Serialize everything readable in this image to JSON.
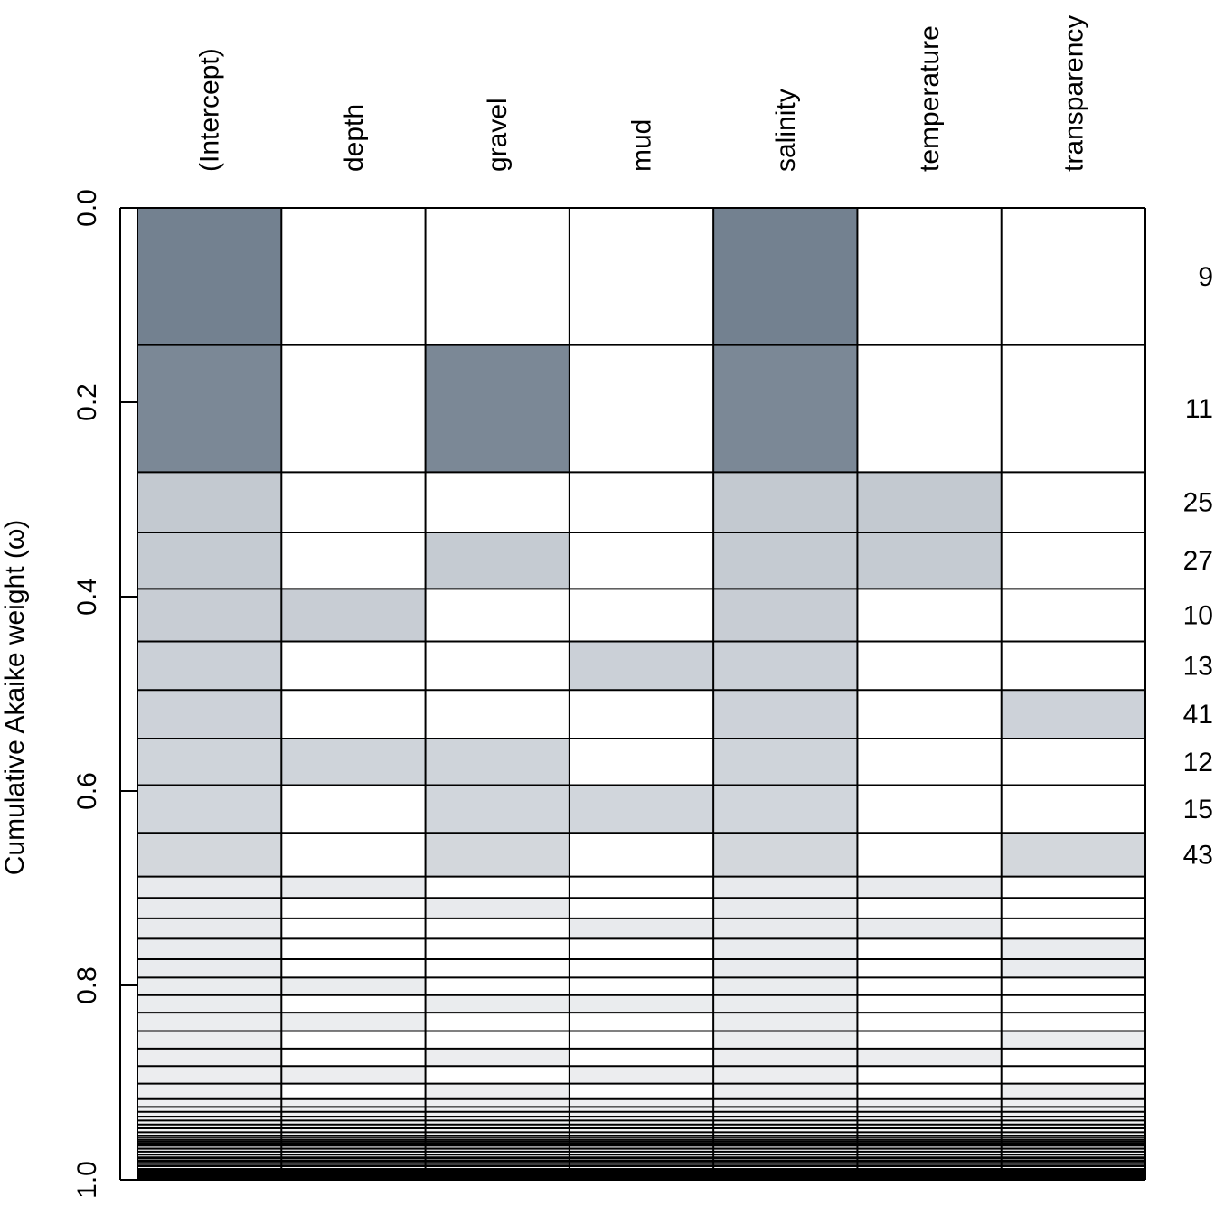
{
  "chart_data": {
    "type": "heatmap",
    "ylabel": "Cumulative Akaike weight (ω)",
    "yticks": [
      "0.0",
      "0.2",
      "0.4",
      "0.6",
      "0.8",
      "1.0"
    ],
    "ylim": [
      0,
      1
    ],
    "variables": [
      "(Intercept)",
      "depth",
      "gravel",
      "mud",
      "salinity",
      "temperature",
      "transparency"
    ],
    "model_boundaries": [
      0.0,
      0.141,
      0.272,
      0.334,
      0.392,
      0.446,
      0.496,
      0.546,
      0.594,
      0.643,
      0.688,
      0.71,
      0.731,
      0.752,
      0.773,
      0.792,
      0.81,
      0.828,
      0.847,
      0.865,
      0.883,
      0.901,
      0.917,
      0.925,
      0.93,
      0.935,
      0.939,
      0.943,
      0.947,
      0.951,
      0.955,
      0.959,
      0.962,
      0.965,
      0.968,
      0.971,
      0.974,
      0.977,
      0.98,
      0.983,
      0.986,
      0.989,
      0.992,
      0.995,
      0.998,
      1.0
    ],
    "models": [
      {
        "label": "9",
        "terms": [
          "(Intercept)",
          "salinity"
        ],
        "fill": "#738190"
      },
      {
        "label": "11",
        "terms": [
          "(Intercept)",
          "gravel",
          "salinity"
        ],
        "fill": "#7b8896"
      },
      {
        "label": "25",
        "terms": [
          "(Intercept)",
          "salinity",
          "temperature"
        ],
        "fill": "#c3c9d0"
      },
      {
        "label": "27",
        "terms": [
          "(Intercept)",
          "gravel",
          "salinity",
          "temperature"
        ],
        "fill": "#c5cbd2"
      },
      {
        "label": "10",
        "terms": [
          "(Intercept)",
          "depth",
          "salinity"
        ],
        "fill": "#c8cdd4"
      },
      {
        "label": "13",
        "terms": [
          "(Intercept)",
          "mud",
          "salinity"
        ],
        "fill": "#cbd0d7"
      },
      {
        "label": "41",
        "terms": [
          "(Intercept)",
          "salinity",
          "transparency"
        ],
        "fill": "#cdd2d9"
      },
      {
        "label": "12",
        "terms": [
          "(Intercept)",
          "depth",
          "gravel",
          "salinity"
        ],
        "fill": "#cfd4da"
      },
      {
        "label": "15",
        "terms": [
          "(Intercept)",
          "gravel",
          "mud",
          "salinity"
        ],
        "fill": "#d1d6dc"
      },
      {
        "label": "43",
        "terms": [
          "(Intercept)",
          "gravel",
          "salinity",
          "transparency"
        ],
        "fill": "#d3d7dc"
      },
      {
        "label": "",
        "terms": [
          "(Intercept)",
          "depth",
          "salinity",
          "temperature"
        ],
        "fill": "#e8eaed"
      },
      {
        "label": "",
        "terms": [
          "(Intercept)",
          "gravel",
          "salinity"
        ],
        "fill": "#e8eaed"
      },
      {
        "label": "",
        "terms": [
          "(Intercept)",
          "mud",
          "salinity",
          "temperature"
        ],
        "fill": "#e8eaed"
      },
      {
        "label": "",
        "terms": [
          "(Intercept)",
          "salinity",
          "transparency"
        ],
        "fill": "#e9ebee"
      },
      {
        "label": "",
        "terms": [
          "(Intercept)",
          "salinity",
          "transparency"
        ],
        "fill": "#e9ebee"
      },
      {
        "label": "",
        "terms": [
          "(Intercept)",
          "depth",
          "salinity"
        ],
        "fill": "#eaecee"
      },
      {
        "label": "",
        "terms": [
          "(Intercept)",
          "gravel",
          "mud",
          "salinity"
        ],
        "fill": "#eaecee"
      },
      {
        "label": "",
        "terms": [
          "(Intercept)",
          "depth",
          "salinity"
        ],
        "fill": "#ebedef"
      },
      {
        "label": "",
        "terms": [
          "(Intercept)",
          "salinity",
          "transparency"
        ],
        "fill": "#ebedef"
      },
      {
        "label": "",
        "terms": [
          "(Intercept)",
          "gravel",
          "salinity",
          "temperature"
        ],
        "fill": "#ecedef"
      },
      {
        "label": "",
        "terms": [
          "(Intercept)",
          "depth",
          "mud",
          "salinity"
        ],
        "fill": "#ecedef"
      },
      {
        "label": "",
        "terms": [
          "(Intercept)",
          "gravel",
          "salinity",
          "transparency"
        ],
        "fill": "#edeef0"
      },
      {
        "label": "",
        "terms": [
          "(Intercept)",
          "depth",
          "gravel",
          "mud",
          "salinity",
          "temperature",
          "transparency"
        ],
        "fill": "#eeeff1"
      },
      {
        "label": "",
        "terms": [
          "(Intercept)",
          "depth",
          "gravel",
          "mud",
          "salinity",
          "temperature",
          "transparency"
        ],
        "fill": "#eeeff1"
      },
      {
        "label": "",
        "terms": [
          "(Intercept)",
          "depth",
          "gravel",
          "mud",
          "salinity",
          "temperature",
          "transparency"
        ],
        "fill": "#eff0f2"
      },
      {
        "label": "",
        "terms": [
          "(Intercept)",
          "depth",
          "gravel",
          "mud",
          "salinity",
          "temperature",
          "transparency"
        ],
        "fill": "#eff0f2"
      },
      {
        "label": "",
        "terms": [
          "(Intercept)",
          "depth",
          "gravel",
          "mud",
          "salinity",
          "temperature",
          "transparency"
        ],
        "fill": "#f0f1f2"
      },
      {
        "label": "",
        "terms": [
          "(Intercept)",
          "depth",
          "gravel",
          "mud",
          "salinity",
          "temperature",
          "transparency"
        ],
        "fill": "#f0f1f2"
      },
      {
        "label": "",
        "terms": [
          "(Intercept)",
          "depth",
          "gravel",
          "mud",
          "salinity",
          "temperature",
          "transparency"
        ],
        "fill": "#f1f2f3"
      },
      {
        "label": "",
        "terms": [
          "(Intercept)",
          "depth",
          "gravel",
          "mud",
          "salinity",
          "temperature",
          "transparency"
        ],
        "fill": "#f1f2f3"
      },
      {
        "label": "",
        "terms": [
          "(Intercept)",
          "depth",
          "gravel",
          "mud",
          "salinity",
          "temperature",
          "transparency"
        ],
        "fill": "#f2f2f4"
      },
      {
        "label": "",
        "terms": [
          "(Intercept)",
          "depth",
          "gravel",
          "mud",
          "salinity",
          "temperature",
          "transparency"
        ],
        "fill": "#f2f2f4"
      },
      {
        "label": "",
        "terms": [
          "(Intercept)",
          "depth",
          "gravel",
          "mud",
          "salinity",
          "temperature",
          "transparency"
        ],
        "fill": "#f2f3f4"
      },
      {
        "label": "",
        "terms": [
          "(Intercept)",
          "depth",
          "gravel",
          "mud",
          "salinity",
          "temperature",
          "transparency"
        ],
        "fill": "#f3f3f5"
      },
      {
        "label": "",
        "terms": [
          "(Intercept)",
          "depth",
          "gravel",
          "mud",
          "salinity",
          "temperature",
          "transparency"
        ],
        "fill": "#f3f3f5"
      },
      {
        "label": "",
        "terms": [
          "(Intercept)",
          "depth",
          "gravel",
          "mud",
          "salinity",
          "temperature",
          "transparency"
        ],
        "fill": "#f3f4f5"
      },
      {
        "label": "",
        "terms": [
          "(Intercept)",
          "depth",
          "gravel",
          "mud",
          "salinity",
          "temperature",
          "transparency"
        ],
        "fill": "#f4f4f5"
      },
      {
        "label": "",
        "terms": [
          "(Intercept)",
          "depth",
          "gravel",
          "mud",
          "salinity",
          "temperature",
          "transparency"
        ],
        "fill": "#f4f4f6"
      },
      {
        "label": "",
        "terms": [
          "(Intercept)",
          "depth",
          "gravel",
          "mud",
          "salinity",
          "temperature",
          "transparency"
        ],
        "fill": "#f4f5f6"
      },
      {
        "label": "",
        "terms": [
          "(Intercept)",
          "depth",
          "gravel",
          "mud",
          "salinity",
          "temperature",
          "transparency"
        ],
        "fill": "#f5f5f6"
      },
      {
        "label": "",
        "terms": [
          "(Intercept)",
          "depth",
          "gravel",
          "mud",
          "salinity",
          "temperature",
          "transparency"
        ],
        "fill": "#f5f5f6"
      },
      {
        "label": "",
        "terms": [
          "(Intercept)",
          "depth",
          "gravel",
          "mud",
          "salinity",
          "temperature",
          "transparency"
        ],
        "fill": "#f5f5f7"
      },
      {
        "label": "",
        "terms": [
          "(Intercept)",
          "depth",
          "gravel",
          "mud",
          "salinity",
          "temperature",
          "transparency"
        ],
        "fill": "#f5f6f7"
      },
      {
        "label": "",
        "terms": [
          "(Intercept)",
          "depth",
          "gravel",
          "mud",
          "salinity",
          "temperature",
          "transparency"
        ],
        "fill": "#f6f6f7"
      },
      {
        "label": "",
        "terms": [
          "(Intercept)",
          "depth",
          "gravel",
          "mud",
          "salinity",
          "temperature",
          "transparency"
        ],
        "fill": "#f6f6f7"
      }
    ],
    "dense_tail": {
      "from": 0.988,
      "to": 1.0
    },
    "colors": {
      "border": "#000000",
      "absent": "#ffffff"
    }
  }
}
